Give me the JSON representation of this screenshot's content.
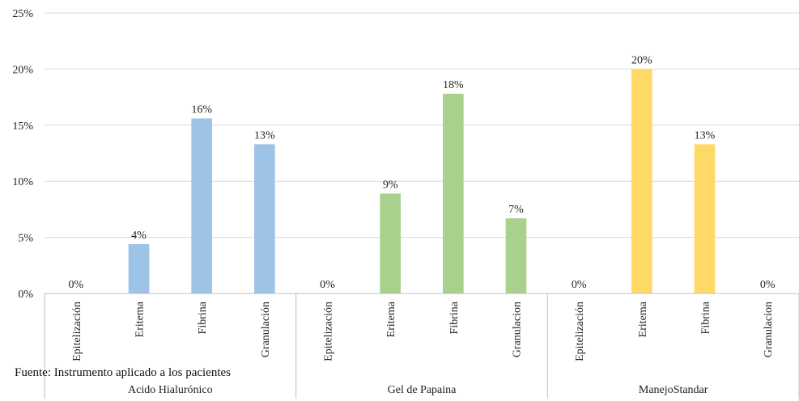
{
  "chart_data": {
    "type": "bar",
    "title": "",
    "xlabel": "",
    "ylabel": "",
    "ylim": [
      0,
      25
    ],
    "yticks": [
      "0%",
      "5%",
      "10%",
      "15%",
      "20%",
      "25%"
    ],
    "grid": true,
    "groups": [
      {
        "name": "Acido Hialurónico",
        "color": "#9DC3E6",
        "categories": [
          "Epitelización",
          "Eritema",
          "Fibrina",
          "Granulación"
        ],
        "values": [
          0,
          4.4,
          15.6,
          13.3
        ],
        "labels": [
          "0%",
          "4%",
          "16%",
          "13%"
        ]
      },
      {
        "name": "Gel de Papaina",
        "color": "#A9D18E",
        "categories": [
          "Epitelización",
          "Eritema",
          "Fibrina",
          "Granulacion"
        ],
        "values": [
          0,
          8.9,
          17.8,
          6.7
        ],
        "labels": [
          "0%",
          "9%",
          "18%",
          "7%"
        ]
      },
      {
        "name": "ManejoStandar",
        "color": "#FFD966",
        "categories": [
          "Epitelización",
          "Eritema",
          "Fibrina",
          "Granulacion"
        ],
        "values": [
          0,
          20,
          13.3,
          0
        ],
        "labels": [
          "0%",
          "20%",
          "13%",
          "0%"
        ]
      }
    ]
  },
  "source_note": "Fuente: Instrumento aplicado a los pacientes"
}
